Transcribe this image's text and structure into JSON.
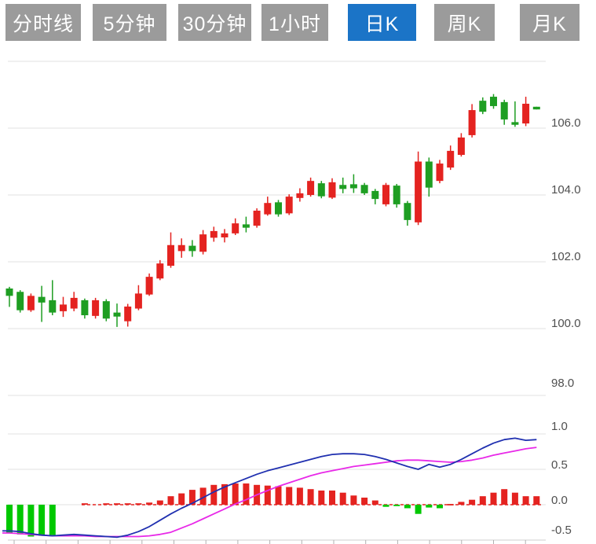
{
  "tabs": {
    "items": [
      {
        "label": "分时线",
        "active": false
      },
      {
        "label": "5分钟",
        "active": false
      },
      {
        "label": "30分钟",
        "active": false
      },
      {
        "label": "1小时",
        "active": false
      },
      {
        "label": "日K",
        "active": true
      },
      {
        "label": "周K",
        "active": false
      },
      {
        "label": "月K",
        "active": false
      }
    ],
    "active_color": "#1b74c7",
    "inactive_color": "#9b9b9b"
  },
  "price_axis": {
    "labels": [
      "106.0",
      "104.0",
      "102.0",
      "100.0",
      "98.0"
    ]
  },
  "macd_axis": {
    "labels": [
      "1.0",
      "0.5",
      "0.0",
      "-0.5"
    ]
  },
  "chart_data": {
    "type": "candlestick",
    "title": "",
    "xlabel": "",
    "ylabel": "",
    "price_ticks": [
      108,
      106,
      104,
      102,
      100,
      98
    ],
    "price_tick_labels": [
      "106.0",
      "104.0",
      "102.0",
      "100.0",
      "98.0"
    ],
    "grid": true,
    "colors": {
      "up": "#e42320",
      "down": "#1e9e22",
      "hist_up": "#e42320",
      "hist_down": "#00c800",
      "dif_line": "#2030b0",
      "dea_line": "#e829e8",
      "gridline": "#e0e0e0",
      "zero_dash": "#e42320",
      "axis_text": "#4f4f4f"
    },
    "candles_ohlc_order": [
      "open",
      "high",
      "low",
      "close"
    ],
    "candles": [
      [
        101.2,
        101.25,
        100.65,
        100.98
      ],
      [
        101.1,
        101.15,
        100.48,
        100.55
      ],
      [
        100.55,
        101.05,
        100.5,
        100.98
      ],
      [
        100.95,
        101.28,
        100.2,
        100.78
      ],
      [
        100.85,
        101.45,
        100.4,
        100.48
      ],
      [
        100.52,
        100.95,
        100.35,
        100.72
      ],
      [
        100.6,
        101.1,
        100.52,
        100.92
      ],
      [
        100.85,
        100.9,
        100.3,
        100.4
      ],
      [
        100.38,
        100.92,
        100.3,
        100.85
      ],
      [
        100.82,
        100.88,
        100.22,
        100.3
      ],
      [
        100.48,
        100.75,
        100.05,
        100.36
      ],
      [
        100.22,
        100.74,
        100.06,
        100.66
      ],
      [
        100.6,
        101.3,
        100.55,
        101.05
      ],
      [
        101.02,
        101.65,
        100.98,
        101.55
      ],
      [
        101.5,
        102.05,
        101.45,
        101.95
      ],
      [
        101.88,
        102.88,
        101.82,
        102.5
      ],
      [
        102.32,
        102.7,
        102.12,
        102.5
      ],
      [
        102.48,
        102.65,
        102.15,
        102.32
      ],
      [
        102.3,
        102.95,
        102.22,
        102.82
      ],
      [
        102.72,
        103.05,
        102.6,
        102.92
      ],
      [
        102.73,
        102.98,
        102.58,
        102.85
      ],
      [
        102.85,
        103.3,
        102.8,
        103.15
      ],
      [
        103.12,
        103.35,
        102.88,
        103.02
      ],
      [
        103.08,
        103.6,
        103.02,
        103.53
      ],
      [
        103.42,
        103.95,
        103.38,
        103.76
      ],
      [
        103.78,
        103.85,
        103.35,
        103.42
      ],
      [
        103.45,
        104.02,
        103.4,
        103.95
      ],
      [
        103.91,
        104.2,
        103.8,
        104.05
      ],
      [
        104.0,
        104.52,
        103.95,
        104.42
      ],
      [
        104.35,
        104.42,
        103.9,
        103.96
      ],
      [
        103.92,
        104.5,
        103.88,
        104.38
      ],
      [
        104.3,
        104.52,
        104.05,
        104.18
      ],
      [
        104.32,
        104.62,
        104.06,
        104.2
      ],
      [
        104.3,
        104.36,
        104.0,
        104.05
      ],
      [
        104.12,
        104.18,
        103.72,
        103.88
      ],
      [
        103.72,
        104.36,
        103.66,
        104.3
      ],
      [
        104.28,
        104.33,
        103.62,
        103.72
      ],
      [
        103.76,
        103.82,
        103.08,
        103.25
      ],
      [
        103.18,
        105.3,
        103.1,
        105.0
      ],
      [
        105.0,
        105.12,
        103.95,
        104.22
      ],
      [
        104.42,
        105.05,
        104.35,
        104.94
      ],
      [
        104.82,
        105.48,
        104.75,
        105.32
      ],
      [
        105.2,
        105.85,
        105.15,
        105.72
      ],
      [
        105.79,
        106.72,
        105.72,
        106.54
      ],
      [
        106.82,
        106.92,
        106.42,
        106.49
      ],
      [
        106.94,
        107.02,
        106.58,
        106.66
      ],
      [
        106.78,
        106.85,
        106.1,
        106.26
      ],
      [
        106.18,
        106.8,
        106.04,
        106.1
      ],
      [
        106.14,
        106.94,
        106.06,
        106.73
      ],
      [
        106.64,
        106.64,
        106.56,
        106.56
      ]
    ],
    "indicator": {
      "type": "MACD",
      "axis_ticks": [
        1.0,
        0.5,
        0.0,
        -0.5
      ],
      "histogram": [
        -0.4,
        -0.42,
        -0.45,
        -0.44,
        -0.43,
        0,
        0,
        0.02,
        0,
        0.02,
        0.02,
        0.02,
        0.02,
        0.03,
        0.06,
        0.12,
        0.16,
        0.21,
        0.24,
        0.28,
        0.29,
        0.3,
        0.3,
        0.28,
        0.27,
        0.26,
        0.25,
        0.24,
        0.22,
        0.2,
        0.2,
        0.17,
        0.13,
        0.1,
        0.06,
        -0.03,
        -0.01,
        -0.05,
        -0.13,
        -0.04,
        -0.05,
        0.01,
        0.04,
        0.07,
        0.12,
        0.17,
        0.22,
        0.17,
        0.12,
        0.12
      ],
      "dif": [
        -0.37,
        -0.38,
        -0.41,
        -0.43,
        -0.44,
        -0.43,
        -0.42,
        -0.43,
        -0.44,
        -0.45,
        -0.46,
        -0.43,
        -0.38,
        -0.31,
        -0.22,
        -0.13,
        -0.05,
        0.02,
        0.1,
        0.18,
        0.25,
        0.31,
        0.37,
        0.43,
        0.48,
        0.52,
        0.56,
        0.6,
        0.64,
        0.68,
        0.71,
        0.72,
        0.72,
        0.71,
        0.68,
        0.64,
        0.59,
        0.54,
        0.5,
        0.57,
        0.53,
        0.57,
        0.64,
        0.72,
        0.8,
        0.87,
        0.92,
        0.94,
        0.91,
        0.92
      ],
      "dea": [
        -0.4,
        -0.41,
        -0.42,
        -0.43,
        -0.44,
        -0.44,
        -0.44,
        -0.44,
        -0.45,
        -0.45,
        -0.45,
        -0.45,
        -0.45,
        -0.44,
        -0.42,
        -0.39,
        -0.33,
        -0.27,
        -0.2,
        -0.13,
        -0.06,
        0.01,
        0.07,
        0.14,
        0.2,
        0.26,
        0.31,
        0.36,
        0.41,
        0.45,
        0.48,
        0.51,
        0.54,
        0.56,
        0.58,
        0.6,
        0.62,
        0.63,
        0.63,
        0.62,
        0.61,
        0.6,
        0.61,
        0.63,
        0.66,
        0.7,
        0.73,
        0.76,
        0.79,
        0.81
      ]
    }
  }
}
